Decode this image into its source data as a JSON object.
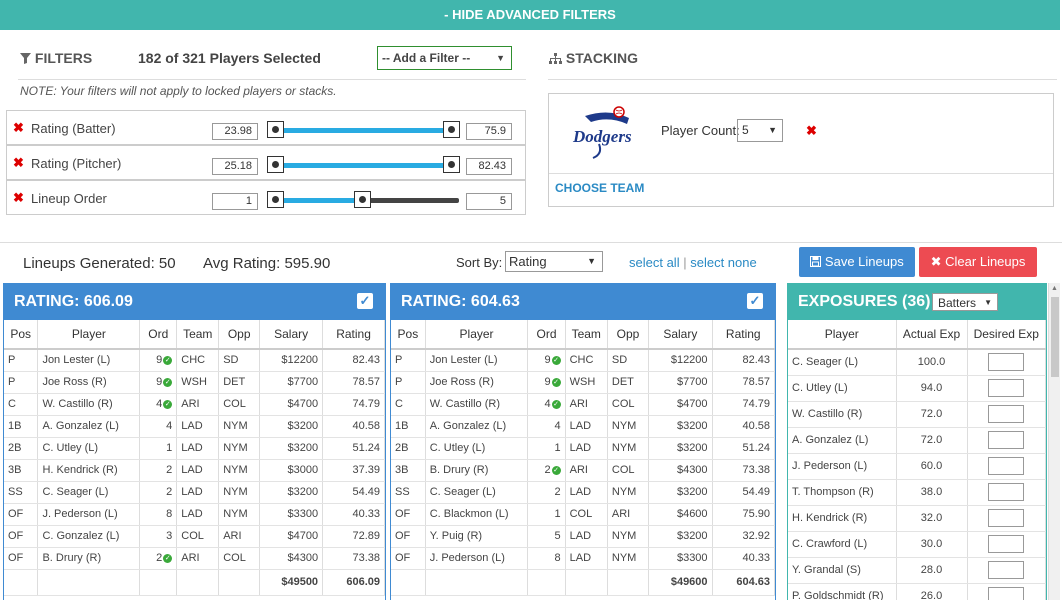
{
  "topbar": {
    "label": "- HIDE ADVANCED FILTERS"
  },
  "filters": {
    "title": "FILTERS",
    "selected_text": "182 of 321 Players Selected",
    "add_filter": "-- Add a Filter --",
    "note": "NOTE: Your filters will not apply to locked players or stacks.",
    "rows": [
      {
        "label": "Rating (Batter)",
        "min": "23.98",
        "max": "75.9"
      },
      {
        "label": "Rating (Pitcher)",
        "min": "25.18",
        "max": "82.43"
      },
      {
        "label": "Lineup Order",
        "min": "1",
        "max": "5"
      }
    ]
  },
  "stacking": {
    "title": "STACKING",
    "team_logo_text": "Dodgers",
    "player_count_label": "Player Count:",
    "player_count_value": "5",
    "choose_team": "CHOOSE TEAM"
  },
  "summary": {
    "lineups_generated": "Lineups Generated: 50",
    "avg_rating": "Avg Rating: 595.90",
    "sort_by_label": "Sort By:",
    "sort_by_value": "Rating",
    "select_all": "select all",
    "select_none": "select none",
    "save_button": "Save Lineups",
    "clear_button": "Clear Lineups"
  },
  "columns": [
    "Pos",
    "Player",
    "Ord",
    "Team",
    "Opp",
    "Salary",
    "Rating"
  ],
  "lineups": [
    {
      "title": "RATING: 606.09",
      "rows": [
        [
          "P",
          "Jon Lester (L)",
          "9",
          "CHC",
          "SD",
          "$12200",
          "82.43",
          true
        ],
        [
          "P",
          "Joe Ross (R)",
          "9",
          "WSH",
          "DET",
          "$7700",
          "78.57",
          true
        ],
        [
          "C",
          "W. Castillo (R)",
          "4",
          "ARI",
          "COL",
          "$4700",
          "74.79",
          true
        ],
        [
          "1B",
          "A. Gonzalez (L)",
          "4",
          "LAD",
          "NYM",
          "$3200",
          "40.58",
          false
        ],
        [
          "2B",
          "C. Utley (L)",
          "1",
          "LAD",
          "NYM",
          "$3200",
          "51.24",
          false
        ],
        [
          "3B",
          "H. Kendrick (R)",
          "2",
          "LAD",
          "NYM",
          "$3000",
          "37.39",
          false
        ],
        [
          "SS",
          "C. Seager (L)",
          "2",
          "LAD",
          "NYM",
          "$3200",
          "54.49",
          false
        ],
        [
          "OF",
          "J. Pederson (L)",
          "8",
          "LAD",
          "NYM",
          "$3300",
          "40.33",
          false
        ],
        [
          "OF",
          "C. Gonzalez (L)",
          "3",
          "COL",
          "ARI",
          "$4700",
          "72.89",
          false
        ],
        [
          "OF",
          "B. Drury (R)",
          "2",
          "ARI",
          "COL",
          "$4300",
          "73.38",
          true
        ]
      ],
      "total_salary": "$49500",
      "total_rating": "606.09"
    },
    {
      "title": "RATING: 604.63",
      "rows": [
        [
          "P",
          "Jon Lester (L)",
          "9",
          "CHC",
          "SD",
          "$12200",
          "82.43",
          true
        ],
        [
          "P",
          "Joe Ross (R)",
          "9",
          "WSH",
          "DET",
          "$7700",
          "78.57",
          true
        ],
        [
          "C",
          "W. Castillo (R)",
          "4",
          "ARI",
          "COL",
          "$4700",
          "74.79",
          true
        ],
        [
          "1B",
          "A. Gonzalez (L)",
          "4",
          "LAD",
          "NYM",
          "$3200",
          "40.58",
          false
        ],
        [
          "2B",
          "C. Utley (L)",
          "1",
          "LAD",
          "NYM",
          "$3200",
          "51.24",
          false
        ],
        [
          "3B",
          "B. Drury (R)",
          "2",
          "ARI",
          "COL",
          "$4300",
          "73.38",
          true
        ],
        [
          "SS",
          "C. Seager (L)",
          "2",
          "LAD",
          "NYM",
          "$3200",
          "54.49",
          false
        ],
        [
          "OF",
          "C. Blackmon (L)",
          "1",
          "COL",
          "ARI",
          "$4600",
          "75.90",
          false
        ],
        [
          "OF",
          "Y. Puig (R)",
          "5",
          "LAD",
          "NYM",
          "$3200",
          "32.92",
          false
        ],
        [
          "OF",
          "J. Pederson (L)",
          "8",
          "LAD",
          "NYM",
          "$3300",
          "40.33",
          false
        ]
      ],
      "total_salary": "$49600",
      "total_rating": "604.63"
    }
  ],
  "exposures": {
    "title": "EXPOSURES (36)",
    "filter_value": "Batters",
    "columns": [
      "Player",
      "Actual Exp",
      "Desired Exp"
    ],
    "rows": [
      [
        "C. Seager (L)",
        "100.0"
      ],
      [
        "C. Utley (L)",
        "94.0"
      ],
      [
        "W. Castillo (R)",
        "72.0"
      ],
      [
        "A. Gonzalez (L)",
        "72.0"
      ],
      [
        "J. Pederson (L)",
        "60.0"
      ],
      [
        "T. Thompson (R)",
        "38.0"
      ],
      [
        "H. Kendrick (R)",
        "32.0"
      ],
      [
        "C. Crawford (L)",
        "30.0"
      ],
      [
        "Y. Grandal (S)",
        "28.0"
      ],
      [
        "P. Goldschmidt (R)",
        "26.0"
      ]
    ]
  },
  "colors": {
    "teal": "#41b6ad",
    "blue": "#3f8ad2",
    "red": "#ed4b52",
    "slider": "#29abe2"
  }
}
